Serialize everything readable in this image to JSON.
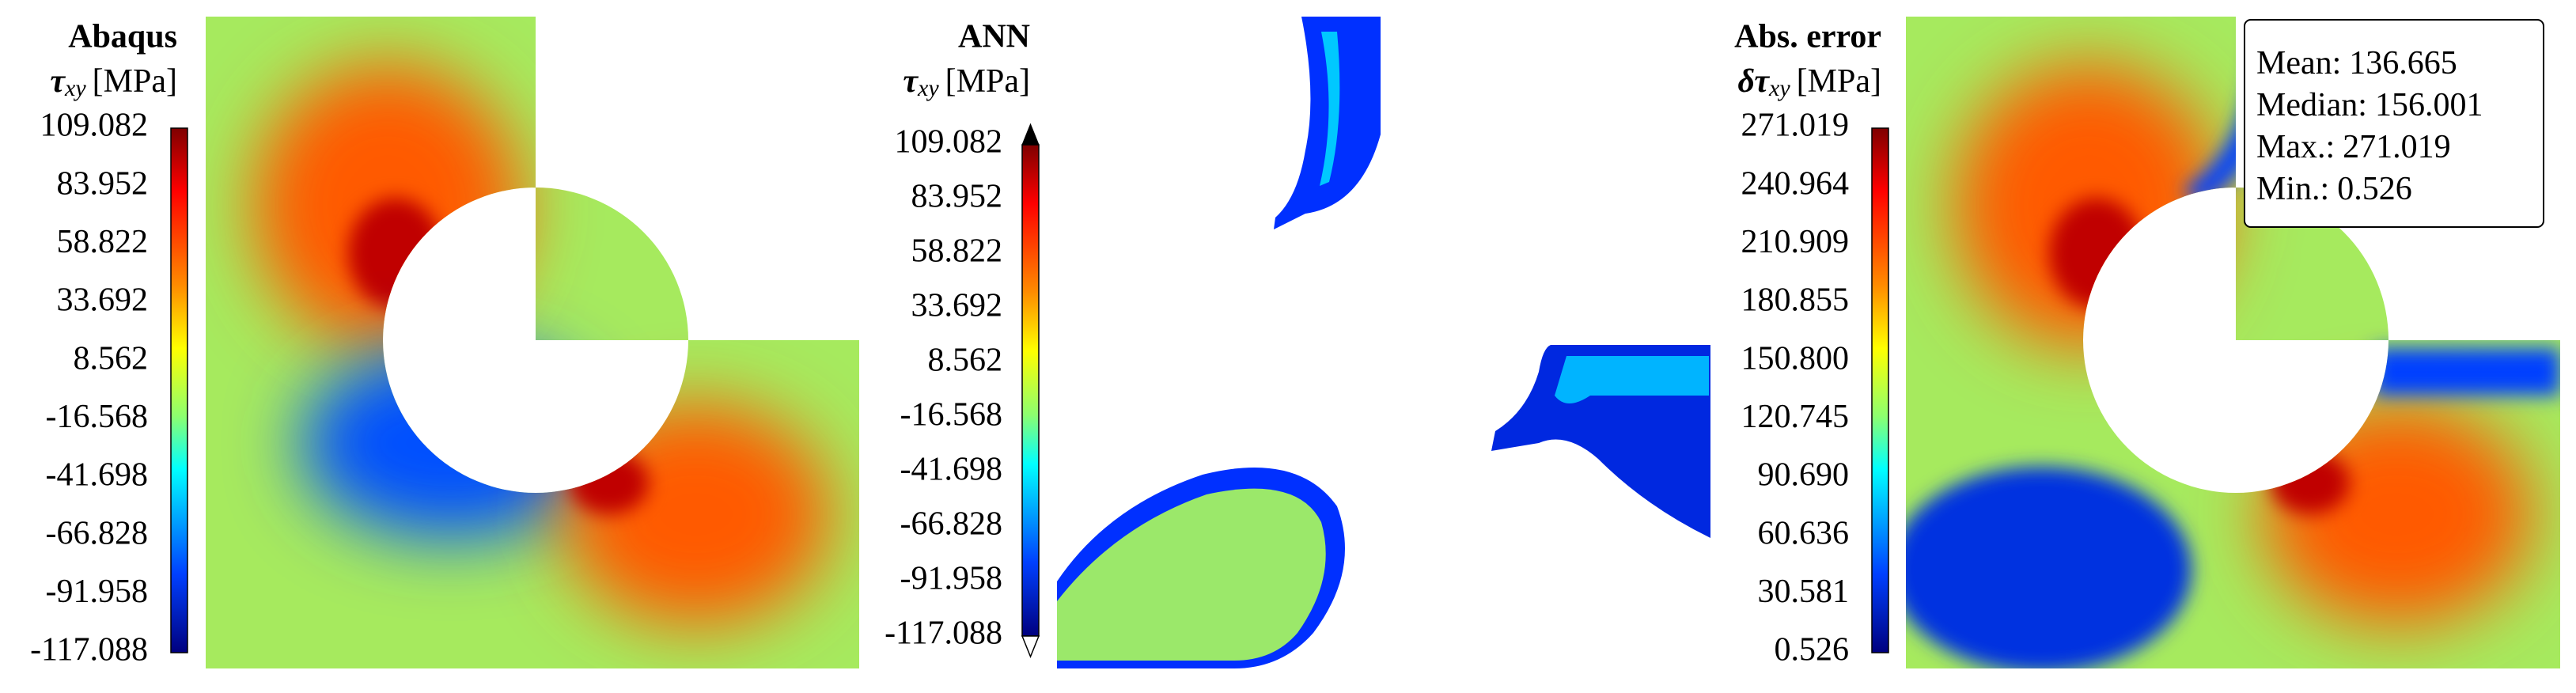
{
  "panels": [
    {
      "title": "Abaqus",
      "symbol": "τ",
      "subscript": "xy",
      "unit": "[MPa]",
      "ticks": [
        "109.082",
        "83.952",
        "58.822",
        "33.692",
        "8.562",
        "-16.568",
        "-41.698",
        "-66.828",
        "-91.958",
        "-117.088"
      ]
    },
    {
      "title": "ANN",
      "symbol": "τ",
      "subscript": "xy",
      "unit": "[MPa]",
      "ticks": [
        "109.082",
        "83.952",
        "58.822",
        "33.692",
        "8.562",
        "-16.568",
        "-41.698",
        "-66.828",
        "-91.958",
        "-117.088"
      ]
    },
    {
      "title": "Abs. error",
      "symbol": "δτ",
      "subscript": "xy",
      "unit": "[MPa]",
      "ticks": [
        "271.019",
        "240.964",
        "210.909",
        "180.855",
        "150.800",
        "120.745",
        "90.690",
        "60.636",
        "30.581",
        "0.526"
      ],
      "stats": [
        {
          "label": "Mean:",
          "value": "136.665"
        },
        {
          "label": "Median:",
          "value": "156.001"
        },
        {
          "label": "Max.:",
          "value": "271.019"
        },
        {
          "label": "Min.:",
          "value": "0.526"
        }
      ]
    }
  ]
}
